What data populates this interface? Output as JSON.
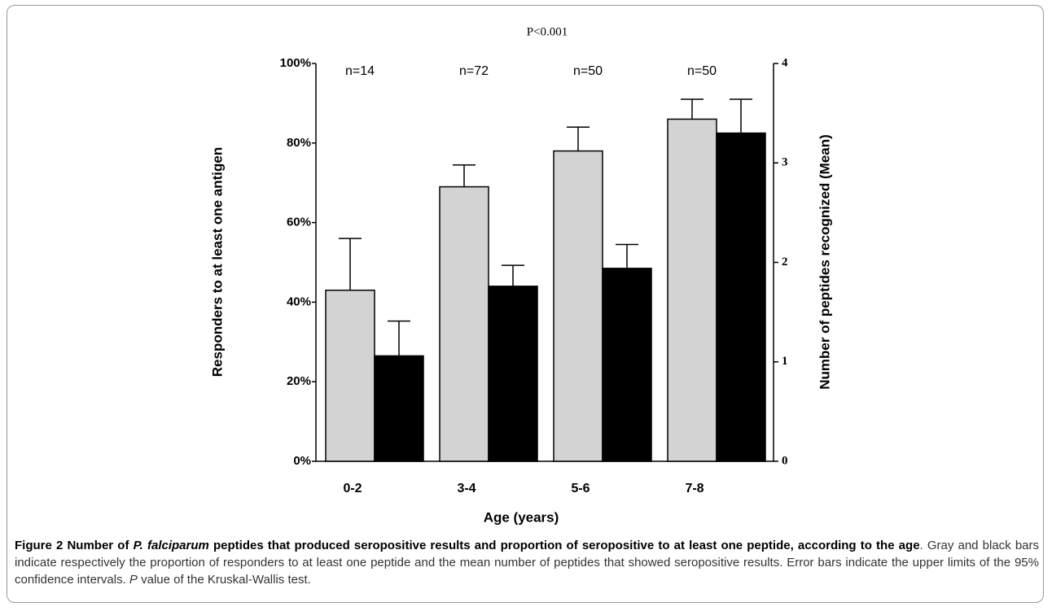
{
  "chart_data": {
    "type": "bar",
    "annotation": "P<0.001",
    "y_label": "Responders to at least one antigen",
    "y2_label": "Number of peptides recognized (Mean)",
    "x_label": "Age (years)",
    "categories": [
      "0-2",
      "3-4",
      "5-6",
      "7-8"
    ],
    "group_labels": [
      "n=14",
      "n=72",
      "n=50",
      "n=50"
    ],
    "series": [
      {
        "color": "#d3d3d3",
        "values": [
          43,
          69,
          78,
          86
        ],
        "errors": [
          13,
          5.5,
          6,
          5
        ]
      },
      {
        "color": "#000000",
        "axis": "y2",
        "values": [
          1.06,
          1.76,
          1.94,
          3.3
        ],
        "errors": [
          0.35,
          0.21,
          0.24,
          0.34
        ]
      }
    ],
    "ylim": [
      0,
      100
    ],
    "yticks": [
      {
        "value": 0,
        "label": "0%"
      },
      {
        "value": 20,
        "label": "20%"
      },
      {
        "value": 40,
        "label": "40%"
      },
      {
        "value": 60,
        "label": "60%"
      },
      {
        "value": 80,
        "label": "80%"
      },
      {
        "value": 100,
        "label": "100%"
      }
    ],
    "y2lim": [
      0,
      4
    ],
    "y2ticks": [
      0,
      1,
      2,
      3,
      4
    ],
    "grid": false
  },
  "caption": {
    "segments": [
      "Figure 2 Number of ",
      "P. falciparum",
      " peptides that produced seropositive results and proportion of seropositive to at least one peptide, according to the age",
      ". Gray and black bars indicate respectively the proportion of responders to at least one peptide and the mean number of peptides that showed seropositive results. Error bars indicate the upper limits of the 95% confidence intervals. ",
      "P",
      " value of the Kruskal-Wallis test."
    ]
  }
}
